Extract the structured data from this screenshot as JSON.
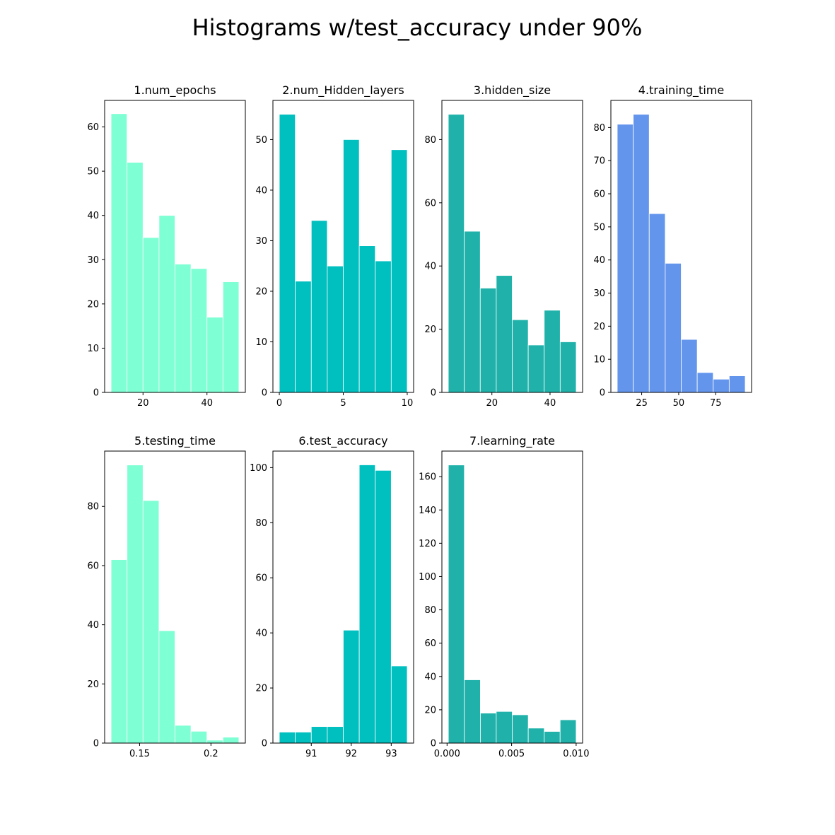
{
  "title": "Histograms w/test_accuracy under 90%",
  "chart_data": [
    {
      "type": "bar",
      "title": "1.num_epochs",
      "color": "#7fffd4",
      "bin_edges": [
        10,
        15,
        20,
        25,
        30,
        35,
        40,
        45,
        50
      ],
      "values": [
        63,
        52,
        35,
        40,
        29,
        28,
        17,
        25
      ],
      "xlim": [
        8,
        52
      ],
      "ylim": [
        0,
        66
      ],
      "xticks": [
        20,
        40
      ],
      "yticks": [
        0,
        10,
        20,
        30,
        40,
        50,
        60
      ],
      "xlabel": "",
      "ylabel": ""
    },
    {
      "type": "bar",
      "title": "2.num_Hidden_layers",
      "color": "#00bfbf",
      "bin_edges": [
        0,
        1.25,
        2.5,
        3.75,
        5,
        6.25,
        7.5,
        8.75,
        10
      ],
      "values": [
        55,
        22,
        34,
        25,
        50,
        29,
        26,
        48
      ],
      "xlim": [
        -0.5,
        10.5
      ],
      "ylim": [
        0,
        57.75
      ],
      "xticks": [
        0,
        5,
        10
      ],
      "yticks": [
        0,
        10,
        20,
        30,
        40,
        50
      ],
      "xlabel": "",
      "ylabel": ""
    },
    {
      "type": "bar",
      "title": "3.hidden_size",
      "color": "#20b2aa",
      "bin_edges": [
        5,
        10.5,
        16,
        21.5,
        27,
        32.5,
        38,
        43.5,
        49
      ],
      "values": [
        88,
        51,
        33,
        37,
        23,
        15,
        26,
        16
      ],
      "xlim": [
        2.8,
        51.2
      ],
      "ylim": [
        0,
        92.4
      ],
      "xticks": [
        20,
        40
      ],
      "yticks": [
        0,
        20,
        40,
        60,
        80
      ],
      "xlabel": "",
      "ylabel": ""
    },
    {
      "type": "bar",
      "title": "4.training_time",
      "color": "#6495ed",
      "bin_edges": [
        8.5,
        19.3,
        30.1,
        40.9,
        51.7,
        62.5,
        73.3,
        84.1,
        94.9
      ],
      "values": [
        81,
        84,
        54,
        39,
        16,
        6,
        4,
        5
      ],
      "xlim": [
        4.2,
        99.2
      ],
      "ylim": [
        0,
        88.2
      ],
      "xticks": [
        25,
        50,
        75
      ],
      "yticks": [
        0,
        10,
        20,
        30,
        40,
        50,
        60,
        70,
        80
      ],
      "xlabel": "",
      "ylabel": ""
    },
    {
      "type": "bar",
      "title": "5.testing_time",
      "color": "#7fffd4",
      "bin_edges": [
        0.13,
        0.1412,
        0.1524,
        0.1636,
        0.1748,
        0.186,
        0.1972,
        0.2084,
        0.2196
      ],
      "values": [
        62,
        94,
        82,
        38,
        6,
        4,
        1,
        2
      ],
      "xlim": [
        0.1255,
        0.2241
      ],
      "ylim": [
        0,
        98.7
      ],
      "xticks": [
        0.15,
        0.2
      ],
      "yticks": [
        0,
        20,
        40,
        60,
        80
      ],
      "xlabel": "",
      "ylabel": ""
    },
    {
      "type": "bar",
      "title": "6.test_accuracy",
      "color": "#00bfbf",
      "bin_edges": [
        90.2,
        90.6,
        91.0,
        91.4,
        91.8,
        92.2,
        92.6,
        93.0,
        93.4
      ],
      "values": [
        4,
        4,
        6,
        6,
        41,
        101,
        99,
        28
      ],
      "xlim": [
        90.04,
        93.56
      ],
      "ylim": [
        0,
        106
      ],
      "xticks": [
        91,
        92,
        93
      ],
      "yticks": [
        0,
        20,
        40,
        60,
        80,
        100
      ],
      "xlabel": "",
      "ylabel": ""
    },
    {
      "type": "bar",
      "title": "7.learning_rate",
      "color": "#20b2aa",
      "bin_edges": [
        0.0001,
        0.00134,
        0.00258,
        0.00381,
        0.00505,
        0.00629,
        0.00753,
        0.00876,
        0.01
      ],
      "values": [
        167,
        38,
        18,
        19,
        17,
        9,
        7,
        14
      ],
      "xlim": [
        -0.0004,
        0.0105
      ],
      "ylim": [
        0,
        175.35
      ],
      "xticks": [
        0.0,
        0.005,
        0.01
      ],
      "xtick_labels": [
        "0.000",
        "0.005",
        "0.010"
      ],
      "yticks": [
        0,
        20,
        40,
        60,
        80,
        100,
        120,
        140,
        160
      ],
      "xlabel": "",
      "ylabel": ""
    }
  ]
}
